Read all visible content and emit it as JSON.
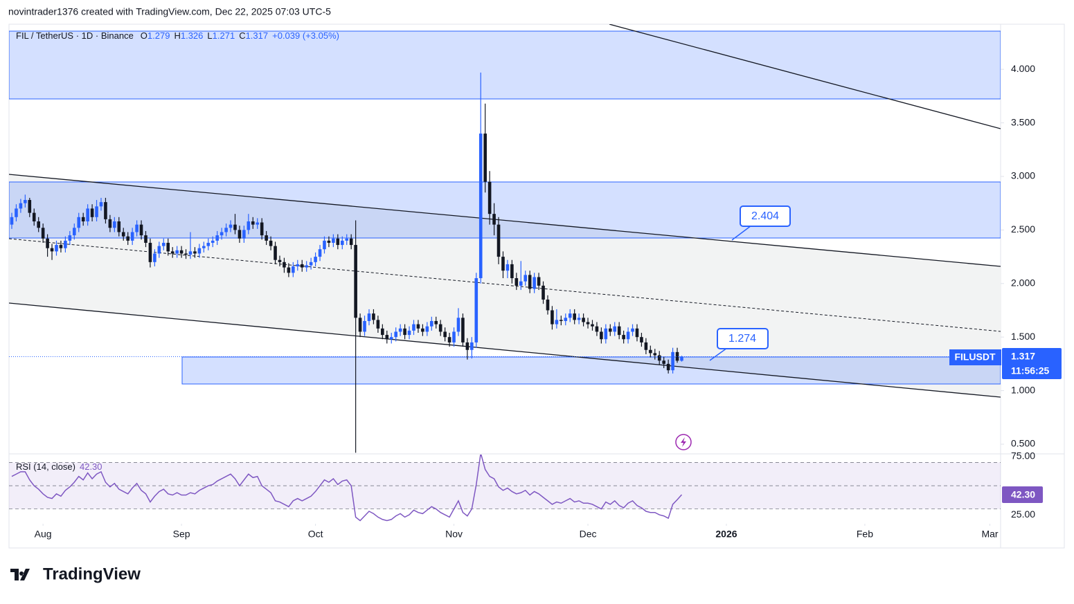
{
  "header": "novintrader1376 created with TradingView.com, Dec 22, 2025 07:03 UTC-5",
  "chart_data": {
    "type": "candlestick",
    "title": "FIL / TetherUS · 1D · Binance",
    "legend_labels": [
      "O",
      "H",
      "L",
      "C"
    ],
    "change": "+0.039 (+3.05%)",
    "open": [
      2.55,
      2.62,
      2.7,
      2.75,
      2.78,
      2.66,
      2.58,
      2.52,
      2.42,
      2.33,
      2.3,
      2.36,
      2.33,
      2.4,
      2.45,
      2.52,
      2.62,
      2.58,
      2.7,
      2.62,
      2.72,
      2.76,
      2.6,
      2.52,
      2.58,
      2.48,
      2.44,
      2.4,
      2.48,
      2.55,
      2.45,
      2.38,
      2.2,
      2.28,
      2.35,
      2.38,
      2.3,
      2.28,
      2.31,
      2.28,
      2.27,
      2.3,
      2.28,
      2.33,
      2.35,
      2.38,
      2.4,
      2.45,
      2.48,
      2.52,
      2.55,
      2.5,
      2.42,
      2.5,
      2.58,
      2.55,
      2.57,
      2.45,
      2.4,
      2.35,
      2.22,
      2.2,
      2.15,
      2.1,
      2.16,
      2.18,
      2.15,
      2.17,
      2.2,
      2.25,
      2.32,
      2.4,
      2.38,
      2.42,
      2.36,
      2.4,
      2.42,
      2.36,
      1.68,
      1.55,
      1.65,
      1.72,
      1.66,
      1.58,
      1.52,
      1.48,
      1.5,
      1.55,
      1.58,
      1.52,
      1.56,
      1.62,
      1.58,
      1.55,
      1.6,
      1.65,
      1.62,
      1.55,
      1.5,
      1.45,
      1.55,
      1.68,
      1.45,
      1.38,
      1.45,
      2.05,
      3.4,
      2.95,
      2.65,
      2.55,
      2.25,
      2.12,
      2.18,
      2.05,
      1.98,
      2.02,
      2.08,
      1.95,
      2.06,
      1.98,
      1.85,
      1.75,
      1.62,
      1.66,
      1.65,
      1.68,
      1.72,
      1.66,
      1.68,
      1.64,
      1.62,
      1.6,
      1.55,
      1.48,
      1.58,
      1.55,
      1.6,
      1.52,
      1.48,
      1.55,
      1.58,
      1.5,
      1.45,
      1.38,
      1.35,
      1.33,
      1.28,
      1.25,
      1.19,
      1.36,
      1.279
    ],
    "high": [
      2.66,
      2.74,
      2.79,
      2.83,
      2.8,
      2.7,
      2.62,
      2.56,
      2.46,
      2.37,
      2.4,
      2.4,
      2.44,
      2.49,
      2.56,
      2.66,
      2.66,
      2.74,
      2.74,
      2.78,
      2.8,
      2.8,
      2.64,
      2.62,
      2.62,
      2.52,
      2.48,
      2.52,
      2.59,
      2.59,
      2.49,
      2.42,
      2.32,
      2.39,
      2.42,
      2.42,
      2.34,
      2.35,
      2.35,
      2.32,
      2.48,
      2.34,
      2.37,
      2.39,
      2.42,
      2.44,
      2.49,
      2.52,
      2.56,
      2.59,
      2.65,
      2.54,
      2.54,
      2.65,
      2.62,
      2.61,
      2.61,
      2.49,
      2.44,
      2.39,
      2.26,
      2.24,
      2.19,
      2.2,
      2.22,
      2.22,
      2.21,
      2.24,
      2.29,
      2.36,
      2.44,
      2.44,
      2.46,
      2.46,
      2.44,
      2.46,
      2.46,
      2.59,
      1.72,
      1.7,
      1.76,
      1.76,
      1.7,
      1.62,
      1.56,
      1.54,
      1.59,
      1.62,
      1.62,
      1.6,
      1.66,
      1.66,
      1.62,
      1.64,
      1.69,
      1.69,
      1.66,
      1.59,
      1.54,
      1.59,
      1.77,
      1.72,
      1.49,
      1.5,
      2.1,
      3.97,
      3.68,
      3.05,
      2.75,
      2.62,
      2.3,
      2.22,
      2.22,
      2.1,
      2.21,
      2.12,
      2.12,
      2.1,
      2.1,
      2.02,
      1.89,
      1.79,
      1.76,
      1.7,
      1.72,
      1.76,
      1.76,
      1.72,
      1.72,
      1.68,
      1.66,
      1.64,
      1.59,
      1.62,
      1.62,
      1.64,
      1.64,
      1.56,
      1.59,
      1.62,
      1.62,
      1.54,
      1.49,
      1.42,
      1.39,
      1.37,
      1.32,
      1.29,
      1.4,
      1.4,
      1.326
    ],
    "low": [
      2.51,
      2.58,
      2.66,
      2.71,
      2.62,
      2.54,
      2.48,
      2.38,
      2.25,
      2.22,
      2.26,
      2.29,
      2.29,
      2.36,
      2.41,
      2.48,
      2.54,
      2.54,
      2.58,
      2.58,
      2.68,
      2.56,
      2.48,
      2.48,
      2.44,
      2.4,
      2.36,
      2.36,
      2.44,
      2.41,
      2.34,
      2.15,
      2.16,
      2.24,
      2.31,
      2.26,
      2.24,
      2.24,
      2.24,
      2.23,
      2.23,
      2.24,
      2.24,
      2.29,
      2.31,
      2.34,
      2.36,
      2.41,
      2.44,
      2.48,
      2.46,
      2.38,
      2.38,
      2.46,
      2.51,
      2.51,
      2.41,
      2.36,
      2.31,
      2.18,
      2.16,
      2.1,
      2.06,
      2.06,
      2.12,
      2.11,
      2.11,
      2.13,
      2.16,
      2.21,
      2.28,
      2.34,
      2.34,
      2.32,
      2.32,
      2.36,
      2.32,
      0.42,
      1.5,
      1.51,
      1.61,
      1.62,
      1.54,
      1.48,
      1.44,
      1.44,
      1.46,
      1.51,
      1.48,
      1.48,
      1.52,
      1.54,
      1.51,
      1.51,
      1.56,
      1.58,
      1.51,
      1.46,
      1.41,
      1.41,
      1.51,
      1.41,
      1.29,
      1.3,
      1.4,
      2.0,
      2.85,
      2.55,
      2.45,
      2.18,
      2.05,
      2.05,
      2.0,
      1.94,
      1.94,
      1.98,
      1.91,
      1.91,
      1.94,
      1.81,
      1.71,
      1.57,
      1.58,
      1.61,
      1.61,
      1.64,
      1.62,
      1.62,
      1.6,
      1.58,
      1.56,
      1.51,
      1.44,
      1.44,
      1.51,
      1.51,
      1.48,
      1.44,
      1.44,
      1.51,
      1.46,
      1.41,
      1.34,
      1.31,
      1.29,
      1.24,
      1.21,
      1.16,
      1.16,
      1.26,
      1.271
    ],
    "close": [
      2.62,
      2.7,
      2.75,
      2.78,
      2.66,
      2.58,
      2.52,
      2.42,
      2.33,
      2.3,
      2.36,
      2.33,
      2.4,
      2.45,
      2.52,
      2.62,
      2.58,
      2.7,
      2.62,
      2.72,
      2.76,
      2.6,
      2.52,
      2.58,
      2.48,
      2.44,
      2.4,
      2.48,
      2.55,
      2.45,
      2.38,
      2.2,
      2.28,
      2.35,
      2.38,
      2.3,
      2.28,
      2.31,
      2.28,
      2.27,
      2.3,
      2.28,
      2.33,
      2.35,
      2.38,
      2.4,
      2.45,
      2.48,
      2.52,
      2.55,
      2.5,
      2.42,
      2.5,
      2.58,
      2.55,
      2.57,
      2.45,
      2.4,
      2.35,
      2.22,
      2.2,
      2.15,
      2.1,
      2.16,
      2.18,
      2.15,
      2.17,
      2.2,
      2.25,
      2.32,
      2.4,
      2.38,
      2.42,
      2.36,
      2.4,
      2.42,
      2.36,
      1.68,
      1.55,
      1.65,
      1.72,
      1.66,
      1.58,
      1.52,
      1.48,
      1.5,
      1.55,
      1.58,
      1.52,
      1.56,
      1.62,
      1.58,
      1.55,
      1.6,
      1.65,
      1.62,
      1.55,
      1.5,
      1.45,
      1.55,
      1.68,
      1.45,
      1.38,
      1.45,
      2.05,
      3.4,
      2.95,
      2.65,
      2.55,
      2.25,
      2.12,
      2.18,
      2.05,
      1.98,
      2.02,
      2.08,
      1.95,
      2.06,
      1.98,
      1.85,
      1.75,
      1.62,
      1.66,
      1.65,
      1.68,
      1.72,
      1.66,
      1.68,
      1.64,
      1.62,
      1.6,
      1.55,
      1.48,
      1.58,
      1.55,
      1.6,
      1.52,
      1.48,
      1.55,
      1.58,
      1.5,
      1.45,
      1.38,
      1.35,
      1.33,
      1.28,
      1.25,
      1.19,
      1.36,
      1.279,
      1.317
    ],
    "up_color": "#2962ff",
    "down_color": "#131722",
    "xlim": [
      -0.62,
      221.4
    ],
    "xticks": [
      {
        "value": 7,
        "label": "Aug"
      },
      {
        "value": 38,
        "label": "Sep"
      },
      {
        "value": 68,
        "label": "Oct"
      },
      {
        "value": 99,
        "label": "Nov"
      },
      {
        "value": 129,
        "label": "Dec"
      },
      {
        "value": 160,
        "label": "2026"
      },
      {
        "value": 191,
        "label": "Feb"
      },
      {
        "value": 219,
        "label": "Mar"
      }
    ],
    "ylim": [
      0.416,
      4.421
    ],
    "yticks": [
      {
        "value": 0.5,
        "label": "0.500"
      },
      {
        "value": 1,
        "label": "1.000"
      },
      {
        "value": 1.5,
        "label": "1.500"
      },
      {
        "value": 2,
        "label": "2.000"
      },
      {
        "value": 2.5,
        "label": "2.500"
      },
      {
        "value": 3,
        "label": "3.000"
      },
      {
        "value": 3.5,
        "label": "3.500"
      },
      {
        "value": 4,
        "label": "4.000"
      }
    ],
    "symbol": "FILUSDT",
    "countdown": "11:56:25",
    "annotations": [
      "2.404",
      "1.274"
    ],
    "indicator": {
      "type": "line",
      "title": "RSI (14, close)",
      "color": "#7e57c2",
      "value_label": "42.30",
      "ylim": [
        17.3,
        76.8
      ],
      "levels": [
        30,
        50,
        70
      ],
      "yticks": [
        {
          "value": 25,
          "label": "25.00"
        },
        {
          "value": 75,
          "label": "75.00"
        }
      ],
      "values": [
        58,
        60,
        62,
        62,
        55,
        50,
        47,
        43,
        40,
        39,
        43,
        41,
        46,
        49,
        53,
        58,
        55,
        61,
        56,
        60,
        62,
        53,
        49,
        52,
        47,
        45,
        43,
        48,
        52,
        46,
        43,
        36,
        41,
        45,
        47,
        43,
        42,
        44,
        42,
        42,
        44,
        43,
        46,
        48,
        50,
        51,
        54,
        56,
        58,
        60,
        56,
        50,
        55,
        60,
        57,
        58,
        50,
        47,
        44,
        37,
        36,
        34,
        32,
        37,
        39,
        37,
        39,
        41,
        45,
        50,
        55,
        53,
        56,
        51,
        54,
        55,
        50,
        23,
        20,
        24,
        28,
        26,
        23,
        21,
        20,
        21,
        24,
        26,
        23,
        25,
        29,
        27,
        26,
        29,
        32,
        30,
        27,
        25,
        23,
        30,
        37,
        27,
        24,
        30,
        51,
        78,
        64,
        58,
        56,
        49,
        46,
        48,
        45,
        43,
        44,
        46,
        42,
        45,
        43,
        40,
        37,
        34,
        36,
        35,
        37,
        39,
        36,
        37,
        35,
        35,
        34,
        32,
        30,
        36,
        34,
        37,
        33,
        31,
        35,
        37,
        33,
        31,
        28,
        27,
        27,
        25,
        24,
        22,
        34,
        38,
        42.3
      ]
    }
  },
  "footer": "TradingView"
}
